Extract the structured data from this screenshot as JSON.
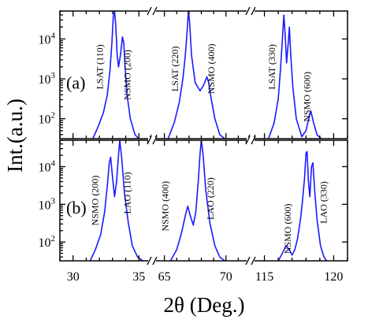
{
  "chart_data": {
    "type": "line",
    "xlabel": "2θ (Deg.)",
    "ylabel": "Int.(a.u.)",
    "series_color": "#1a1aff",
    "x_segments": [
      {
        "range": [
          29,
          36
        ],
        "ticks": [
          {
            "value": 30,
            "label": "30"
          },
          {
            "value": 35,
            "label": "35"
          }
        ]
      },
      {
        "range": [
          64,
          72
        ],
        "ticks": [
          {
            "value": 65,
            "label": "65"
          },
          {
            "value": 70,
            "label": "70"
          }
        ]
      },
      {
        "range": [
          114,
          121
        ],
        "ticks": [
          {
            "value": 115,
            "label": "115"
          },
          {
            "value": 120,
            "label": "120"
          }
        ]
      }
    ],
    "ylim_log10": [
      1.5,
      4.7
    ],
    "y_ticks": [
      {
        "value": 2,
        "base": "10",
        "exp": "2"
      },
      {
        "value": 3,
        "base": "10",
        "exp": "3"
      },
      {
        "value": 4,
        "base": "10",
        "exp": "4"
      }
    ],
    "panels": [
      {
        "label": "(a)",
        "segments": [
          {
            "points": [
              [
                31.5,
                1.5
              ],
              [
                31.9,
                1.8
              ],
              [
                32.3,
                2.15
              ],
              [
                32.6,
                2.6
              ],
              [
                32.8,
                3.2
              ],
              [
                32.95,
                3.9
              ],
              [
                33.05,
                4.55
              ],
              [
                33.15,
                4.7
              ],
              [
                33.25,
                4.3
              ],
              [
                33.35,
                3.6
              ],
              [
                33.45,
                3.3
              ],
              [
                33.6,
                3.6
              ],
              [
                33.75,
                4.05
              ],
              [
                33.85,
                3.9
              ],
              [
                33.95,
                3.3
              ],
              [
                34.1,
                2.6
              ],
              [
                34.35,
                2.0
              ],
              [
                34.7,
                1.6
              ],
              [
                35.0,
                1.5
              ]
            ]
          },
          {
            "points": [
              [
                65.3,
                1.5
              ],
              [
                65.8,
                1.9
              ],
              [
                66.2,
                2.4
              ],
              [
                66.5,
                3.0
              ],
              [
                66.7,
                3.6
              ],
              [
                66.85,
                4.2
              ],
              [
                66.95,
                4.7
              ],
              [
                67.05,
                4.4
              ],
              [
                67.2,
                3.6
              ],
              [
                67.5,
                2.9
              ],
              [
                67.9,
                2.7
              ],
              [
                68.2,
                2.85
              ],
              [
                68.45,
                3.05
              ],
              [
                68.6,
                2.9
              ],
              [
                68.8,
                2.5
              ],
              [
                69.1,
                2.0
              ],
              [
                69.5,
                1.6
              ],
              [
                69.9,
                1.5
              ]
            ]
          },
          {
            "points": [
              [
                115.3,
                1.5
              ],
              [
                115.7,
                1.9
              ],
              [
                116.0,
                2.5
              ],
              [
                116.15,
                3.2
              ],
              [
                116.3,
                4.0
              ],
              [
                116.4,
                4.6
              ],
              [
                116.5,
                4.1
              ],
              [
                116.6,
                3.4
              ],
              [
                116.72,
                3.9
              ],
              [
                116.8,
                4.3
              ],
              [
                116.9,
                3.6
              ],
              [
                117.05,
                2.8
              ],
              [
                117.3,
                2.0
              ],
              [
                117.7,
                1.55
              ],
              [
                118.0,
                1.7
              ],
              [
                118.2,
                2.0
              ],
              [
                118.35,
                2.2
              ],
              [
                118.55,
                1.9
              ],
              [
                118.8,
                1.6
              ],
              [
                119.1,
                1.5
              ]
            ]
          }
        ],
        "annotations": [
          {
            "text": "LSAT (110)",
            "x": 32.25,
            "y": 3.3
          },
          {
            "text": "NSMO (200)",
            "x": 34.35,
            "y": 3.1
          },
          {
            "text": "LSAT (220)",
            "x": 66.1,
            "y": 3.25
          },
          {
            "text": "NSMO (400)",
            "x": 69.05,
            "y": 3.25
          },
          {
            "text": "LSAT (330)",
            "x": 115.75,
            "y": 3.3
          },
          {
            "text": "NSMO (600)",
            "x": 118.3,
            "y": 2.55
          }
        ]
      },
      {
        "label": "(b)",
        "segments": [
          {
            "points": [
              [
                31.3,
                1.5
              ],
              [
                31.7,
                1.8
              ],
              [
                32.1,
                2.2
              ],
              [
                32.4,
                2.8
              ],
              [
                32.6,
                3.5
              ],
              [
                32.75,
                4.1
              ],
              [
                32.85,
                4.25
              ],
              [
                33.0,
                3.7
              ],
              [
                33.15,
                3.2
              ],
              [
                33.3,
                3.6
              ],
              [
                33.45,
                4.3
              ],
              [
                33.55,
                4.7
              ],
              [
                33.7,
                4.2
              ],
              [
                33.9,
                3.3
              ],
              [
                34.2,
                2.5
              ],
              [
                34.5,
                1.9
              ],
              [
                34.9,
                1.6
              ],
              [
                35.3,
                1.5
              ]
            ]
          },
          {
            "points": [
              [
                65.5,
                1.5
              ],
              [
                66.0,
                1.8
              ],
              [
                66.4,
                2.25
              ],
              [
                66.7,
                2.7
              ],
              [
                66.9,
                2.95
              ],
              [
                67.1,
                2.7
              ],
              [
                67.35,
                2.45
              ],
              [
                67.55,
                2.8
              ],
              [
                67.75,
                3.6
              ],
              [
                67.9,
                4.35
              ],
              [
                68.0,
                4.7
              ],
              [
                68.15,
                4.3
              ],
              [
                68.35,
                3.4
              ],
              [
                68.7,
                2.5
              ],
              [
                69.1,
                1.9
              ],
              [
                69.5,
                1.6
              ],
              [
                69.9,
                1.5
              ]
            ]
          },
          {
            "points": [
              [
                116.0,
                1.5
              ],
              [
                116.3,
                1.7
              ],
              [
                116.55,
                1.9
              ],
              [
                116.8,
                1.8
              ],
              [
                117.0,
                1.65
              ],
              [
                117.2,
                1.8
              ],
              [
                117.4,
                2.1
              ],
              [
                117.6,
                2.6
              ],
              [
                117.75,
                3.1
              ],
              [
                117.9,
                3.7
              ],
              [
                118.0,
                4.35
              ],
              [
                118.08,
                4.4
              ],
              [
                118.18,
                3.6
              ],
              [
                118.28,
                3.2
              ],
              [
                118.4,
                4.0
              ],
              [
                118.5,
                4.1
              ],
              [
                118.62,
                3.4
              ],
              [
                118.8,
                2.6
              ],
              [
                119.05,
                1.9
              ],
              [
                119.3,
                1.6
              ],
              [
                119.5,
                1.5
              ]
            ]
          }
        ],
        "annotations": [
          {
            "text": "NSMO (200)",
            "x": 31.9,
            "y": 3.1
          },
          {
            "text": "LAO (110)",
            "x": 34.35,
            "y": 3.3
          },
          {
            "text": "NSMO (400)",
            "x": 65.3,
            "y": 2.95
          },
          {
            "text": "LAO (220)",
            "x": 69.0,
            "y": 3.15
          },
          {
            "text": "NSMO (600)",
            "x": 116.9,
            "y": 2.35
          },
          {
            "text": "LAO (330)",
            "x": 119.5,
            "y": 3.05
          }
        ]
      }
    ]
  }
}
